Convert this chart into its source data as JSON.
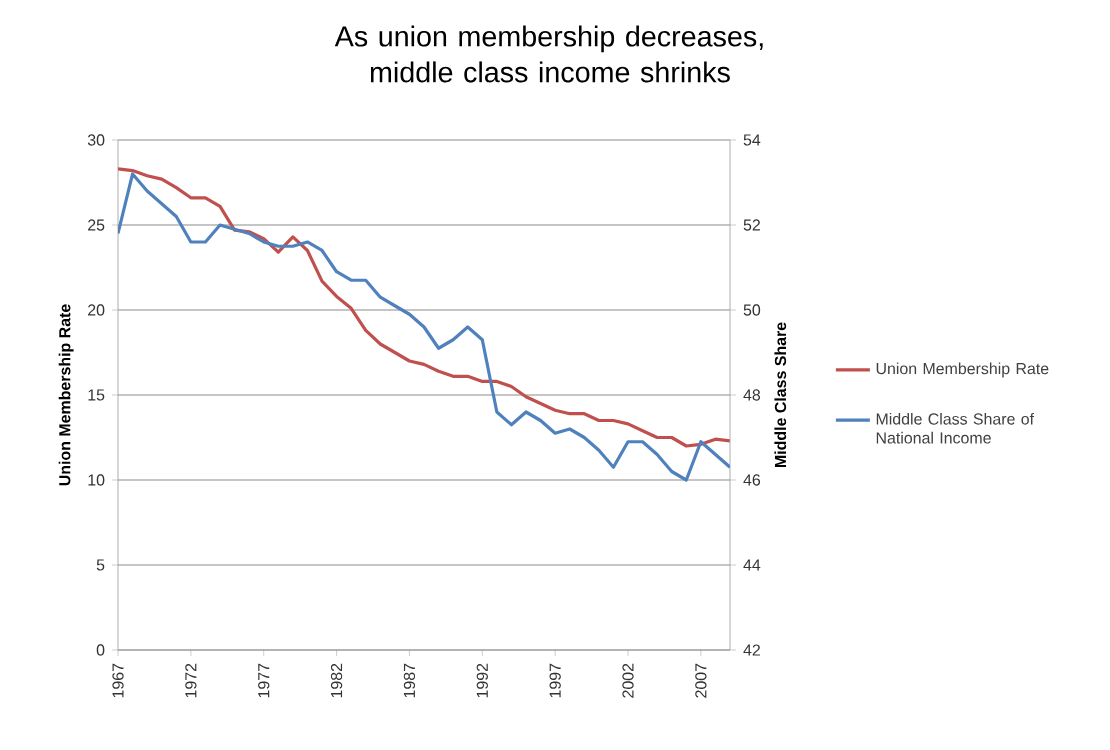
{
  "chart_data": {
    "type": "line",
    "title": "As union membership decreases, middle class income shrinks",
    "ylabel": "Union Membership Rate",
    "y2label": "Middle Class Share",
    "x": [
      1967,
      1968,
      1969,
      1970,
      1971,
      1972,
      1973,
      1974,
      1975,
      1976,
      1977,
      1978,
      1979,
      1980,
      1981,
      1982,
      1983,
      1984,
      1985,
      1986,
      1987,
      1988,
      1989,
      1990,
      1991,
      1992,
      1993,
      1994,
      1995,
      1996,
      1997,
      1998,
      1999,
      2000,
      2001,
      2002,
      2003,
      2004,
      2005,
      2006,
      2007,
      2008,
      2009
    ],
    "series": [
      {
        "name": "Union Membership Rate",
        "color": "#c0504d",
        "values": [
          28.3,
          28.2,
          27.9,
          27.7,
          27.2,
          26.6,
          26.6,
          26.1,
          24.7,
          24.6,
          24.2,
          23.4,
          24.3,
          23.5,
          21.7,
          20.8,
          20.1,
          18.8,
          18.0,
          17.5,
          17.0,
          16.8,
          16.4,
          16.1,
          16.1,
          15.8,
          15.8,
          15.5,
          14.9,
          14.5,
          14.1,
          13.9,
          13.9,
          13.5,
          13.5,
          13.3,
          12.9,
          12.5,
          12.5,
          12.0,
          12.1,
          12.4,
          12.3
        ]
      },
      {
        "name": "Middle Class Share of National Income",
        "color": "#4f81bd",
        "axis": "y2",
        "values": [
          51.8,
          53.2,
          52.8,
          52.5,
          52.2,
          51.6,
          51.6,
          52.0,
          51.9,
          51.8,
          51.6,
          51.5,
          51.5,
          51.6,
          51.4,
          50.9,
          50.7,
          50.7,
          50.3,
          50.1,
          49.9,
          49.6,
          49.1,
          49.3,
          49.6,
          49.3,
          47.6,
          47.3,
          47.6,
          47.4,
          47.1,
          47.2,
          47.0,
          46.7,
          46.3,
          46.9,
          46.9,
          46.6,
          46.2,
          46.0,
          46.9,
          46.6,
          46.3
        ]
      }
    ],
    "xlim": [
      1967,
      2009
    ],
    "xticks": [
      1967,
      1972,
      1977,
      1982,
      1987,
      1992,
      1997,
      2002,
      2007
    ],
    "ylim": [
      0,
      30
    ],
    "yticks": [
      0,
      5,
      10,
      15,
      20,
      25,
      30
    ],
    "y2lim": [
      42,
      54
    ],
    "y2ticks": [
      42,
      44,
      46,
      48,
      50,
      52,
      54
    ],
    "grid": "y",
    "legend": "right",
    "marker": "none",
    "line_style": "solid"
  }
}
